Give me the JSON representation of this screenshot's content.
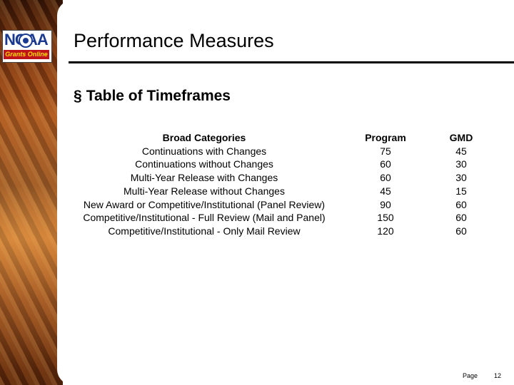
{
  "slide": {
    "title": "Performance Measures",
    "bullet_glyph": "§",
    "bullet_text": "Table of Timeframes"
  },
  "logo": {
    "letters": "NOAA",
    "tagline": "Grants Online"
  },
  "table": {
    "headers": [
      "Broad Categories",
      "Program",
      "GMD"
    ],
    "rows": [
      [
        "Continuations with Changes",
        "75",
        "45"
      ],
      [
        "Continuations without Changes",
        "60",
        "30"
      ],
      [
        "Multi-Year Release with Changes",
        "60",
        "30"
      ],
      [
        "Multi-Year Release without Changes",
        "45",
        "15"
      ],
      [
        "New Award or Competitive/Institutional (Panel Review)",
        "90",
        "60"
      ],
      [
        "Competitive/Institutional - Full Review (Mail and Panel)",
        "150",
        "60"
      ],
      [
        "Competitive/Institutional - Only Mail Review",
        "120",
        "60"
      ]
    ]
  },
  "footer": {
    "page_label": "Page",
    "page_number": "12"
  }
}
